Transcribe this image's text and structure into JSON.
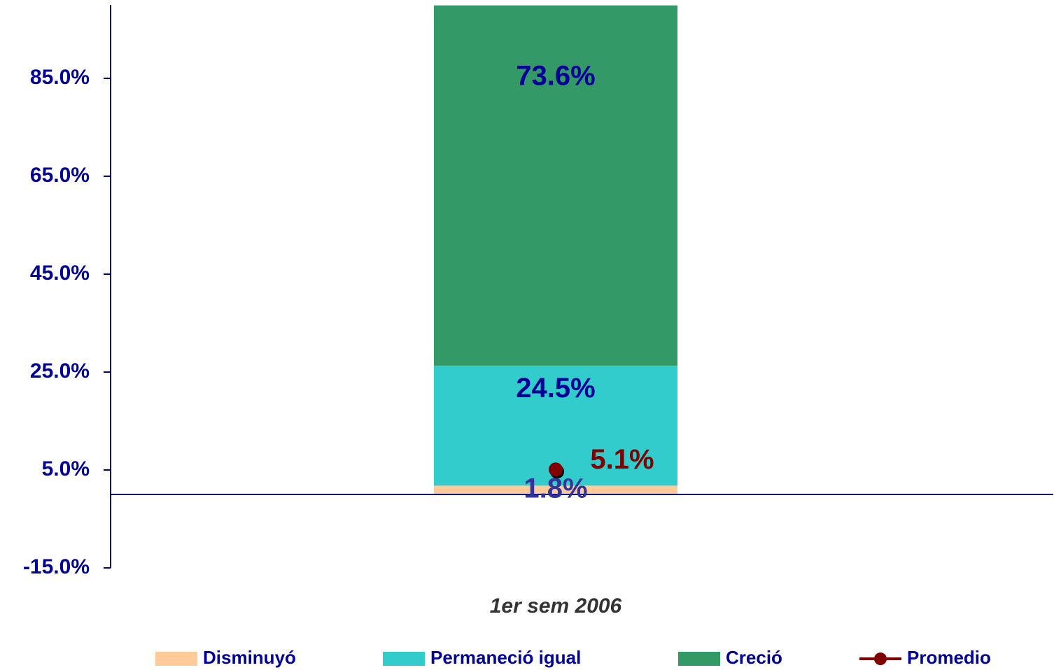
{
  "chart_data": {
    "type": "bar",
    "stacked": true,
    "categories": [
      "1er sem 2006"
    ],
    "series": [
      {
        "name": "Disminuyó",
        "color": "#FFCC99",
        "values": [
          1.8
        ],
        "value_labels": [
          "1.8%"
        ]
      },
      {
        "name": "Permaneció igual",
        "color": "#33CCCC",
        "values": [
          24.5
        ],
        "value_labels": [
          "24.5%"
        ]
      },
      {
        "name": "Creció",
        "color": "#339966",
        "values": [
          73.6
        ],
        "value_labels": [
          "73.6%"
        ]
      },
      {
        "name": "Promedio",
        "type": "line",
        "color": "#800000",
        "values": [
          5.1
        ],
        "value_labels": [
          "5.1%"
        ]
      }
    ],
    "ylim": [
      -15,
      100
    ],
    "yticks": [
      {
        "value": -15,
        "label": "-15.0%"
      },
      {
        "value": 5,
        "label": "5.0%"
      },
      {
        "value": 25,
        "label": "25.0%"
      },
      {
        "value": 45,
        "label": "45.0%"
      },
      {
        "value": 65,
        "label": "65.0%"
      },
      {
        "value": 85,
        "label": "85.0%"
      }
    ],
    "legend": "bottom"
  }
}
